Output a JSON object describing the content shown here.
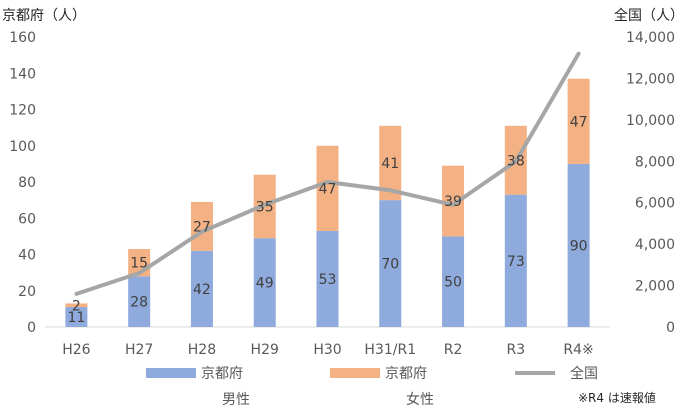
{
  "chart_data": {
    "type": "bar",
    "stacked": true,
    "categories": [
      "H26",
      "H27",
      "H28",
      "H29",
      "H30",
      "H31/R1",
      "R2",
      "R3",
      "R4※"
    ],
    "series": [
      {
        "name": "京都府",
        "sub": "男性",
        "color": "#8faadc",
        "values": [
          11,
          28,
          42,
          49,
          53,
          70,
          50,
          73,
          90
        ]
      },
      {
        "name": "京都府",
        "sub": "女性",
        "color": "#f4b183",
        "values": [
          2,
          15,
          27,
          35,
          47,
          41,
          39,
          38,
          47
        ]
      },
      {
        "name": "全国",
        "type": "line",
        "axis": "right",
        "color": "#a6a6a6",
        "values": [
          1600,
          2600,
          4600,
          5900,
          7000,
          6600,
          5900,
          8000,
          13200
        ]
      }
    ],
    "left_axis": {
      "label": "京都府（人）",
      "min": 0,
      "max": 160,
      "ticks": [
        0,
        20,
        40,
        60,
        80,
        100,
        120,
        140,
        160
      ],
      "tick_labels": [
        "0",
        "20",
        "40",
        "60",
        "80",
        "100",
        "120",
        "140",
        "160"
      ]
    },
    "right_axis": {
      "label": "全国（人）",
      "min": 0,
      "max": 14000,
      "ticks": [
        0,
        2000,
        4000,
        6000,
        8000,
        10000,
        12000,
        14000
      ],
      "tick_labels": [
        "0",
        "2,000",
        "4,000",
        "6,000",
        "8,000",
        "10,000",
        "12,000",
        "14,000"
      ]
    },
    "legend": {
      "entries": [
        {
          "label": "京都府",
          "color": "#8faadc",
          "kind": "box",
          "sub": "男性"
        },
        {
          "label": "京都府",
          "color": "#f4b183",
          "kind": "box",
          "sub": "女性"
        },
        {
          "label": "全国",
          "color": "#a6a6a6",
          "kind": "line"
        }
      ]
    },
    "note": "※R4 は速報値",
    "grid": false
  }
}
